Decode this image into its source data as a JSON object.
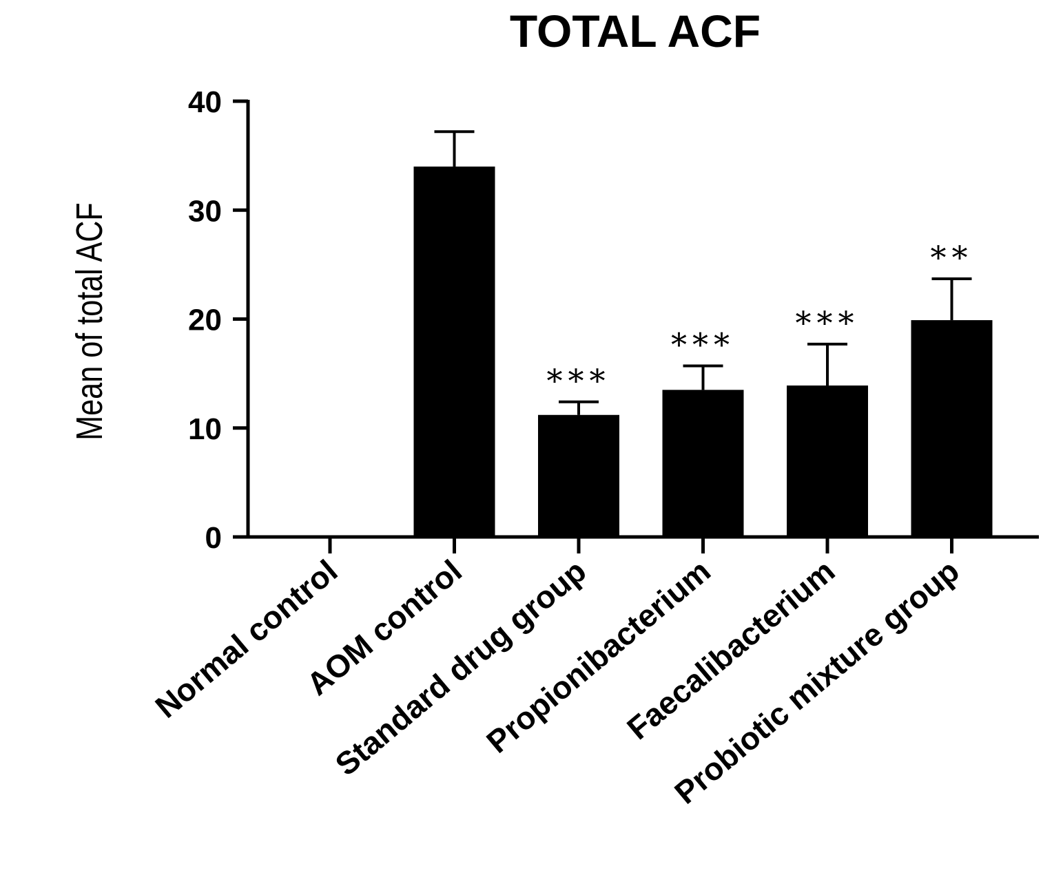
{
  "chart_data": {
    "type": "bar",
    "title": "TOTAL ACF",
    "xlabel": "",
    "ylabel": "Mean of total ACF",
    "ylim": [
      0,
      40
    ],
    "yticks": [
      0,
      10,
      20,
      30,
      40
    ],
    "ytick_labels": [
      "0",
      "10",
      "20",
      "30",
      "40"
    ],
    "categories": [
      "Normal control",
      "AOM control",
      "Standard drug group",
      "Propionibacterium",
      "Faecalibacterium",
      "Probiotic mixture group"
    ],
    "values": [
      0,
      34,
      11.2,
      13.5,
      13.9,
      19.9
    ],
    "error_upper": [
      0,
      3.2,
      1.2,
      2.2,
      3.8,
      3.8
    ],
    "significance": [
      "",
      "",
      "***",
      "***",
      "***",
      "**"
    ],
    "bar_color": "#000000",
    "grid": false,
    "legend": "none"
  }
}
